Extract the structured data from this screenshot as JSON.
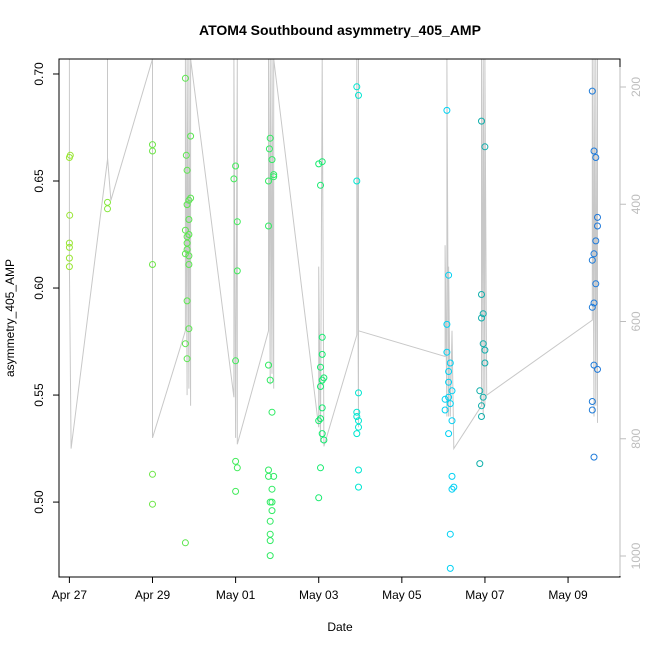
{
  "chart_data": {
    "type": "scatter",
    "title": "ATOM4 Southbound asymmetry_405_AMP",
    "xlabel": "Date",
    "ylabel": "asymmetry_405_AMP",
    "x_ticks": [
      {
        "date": "2018-04-27",
        "label": "Apr 27"
      },
      {
        "date": "2018-04-29",
        "label": "Apr 29"
      },
      {
        "date": "2018-05-01",
        "label": "May 01"
      },
      {
        "date": "2018-05-03",
        "label": "May 03"
      },
      {
        "date": "2018-05-05",
        "label": "May 05"
      },
      {
        "date": "2018-05-07",
        "label": "May 07"
      },
      {
        "date": "2018-05-09",
        "label": "May 09"
      }
    ],
    "xlim": [
      "2018-04-26T18:00",
      "2018-05-10T06:00"
    ],
    "ylim": [
      0.465,
      0.707
    ],
    "y_ticks": [
      0.5,
      0.55,
      0.6,
      0.65,
      0.7
    ],
    "y_tick_labels": [
      "0.50",
      "0.55",
      "0.60",
      "0.65",
      "0.70"
    ],
    "y2_ticks": [
      200,
      400,
      600,
      800,
      1000
    ],
    "y2_tick_labels": [
      "200",
      "400",
      "600",
      "800",
      "1000"
    ],
    "y2_axis": "secondary axis, values increase downward (grey)",
    "grid": false,
    "legend": "none",
    "point_color_scale": "green (earlier) to blue (later) by date",
    "point_color_start": "#99e633",
    "point_color_end": "#1e78dc",
    "line_color": "#c8c8c8",
    "points": [
      {
        "x": "2018-04-27T00:00",
        "y": 0.661
      },
      {
        "x": "2018-04-27T00:30",
        "y": 0.662
      },
      {
        "x": "2018-04-27T00:10",
        "y": 0.634
      },
      {
        "x": "2018-04-27T00:00",
        "y": 0.621
      },
      {
        "x": "2018-04-27T00:00",
        "y": 0.619
      },
      {
        "x": "2018-04-27T00:00",
        "y": 0.614
      },
      {
        "x": "2018-04-27T00:00",
        "y": 0.61
      },
      {
        "x": "2018-04-27T22:00",
        "y": 0.64
      },
      {
        "x": "2018-04-27T22:00",
        "y": 0.637
      },
      {
        "x": "2018-04-29T00:00",
        "y": 0.667
      },
      {
        "x": "2018-04-29T00:00",
        "y": 0.664
      },
      {
        "x": "2018-04-29T00:00",
        "y": 0.611
      },
      {
        "x": "2018-04-29T00:00",
        "y": 0.513
      },
      {
        "x": "2018-04-29T00:00",
        "y": 0.499
      },
      {
        "x": "2018-04-29T19:00",
        "y": 0.698
      },
      {
        "x": "2018-04-29T19:30",
        "y": 0.662
      },
      {
        "x": "2018-04-29T20:00",
        "y": 0.655
      },
      {
        "x": "2018-04-29T22:00",
        "y": 0.671
      },
      {
        "x": "2018-04-29T21:00",
        "y": 0.641
      },
      {
        "x": "2018-04-29T22:00",
        "y": 0.642
      },
      {
        "x": "2018-04-29T20:00",
        "y": 0.639
      },
      {
        "x": "2018-04-29T21:00",
        "y": 0.632
      },
      {
        "x": "2018-04-29T19:00",
        "y": 0.627
      },
      {
        "x": "2018-04-29T20:00",
        "y": 0.624
      },
      {
        "x": "2018-04-29T21:00",
        "y": 0.625
      },
      {
        "x": "2018-04-29T20:00",
        "y": 0.621
      },
      {
        "x": "2018-04-29T20:00",
        "y": 0.618
      },
      {
        "x": "2018-04-29T19:00",
        "y": 0.616
      },
      {
        "x": "2018-04-29T21:00",
        "y": 0.615
      },
      {
        "x": "2018-04-29T21:00",
        "y": 0.611
      },
      {
        "x": "2018-04-29T20:00",
        "y": 0.594
      },
      {
        "x": "2018-04-29T21:00",
        "y": 0.581
      },
      {
        "x": "2018-04-29T19:00",
        "y": 0.574
      },
      {
        "x": "2018-04-29T20:00",
        "y": 0.567
      },
      {
        "x": "2018-04-29T19:00",
        "y": 0.481
      },
      {
        "x": "2018-05-01T00:00",
        "y": 0.657
      },
      {
        "x": "2018-04-30T23:00",
        "y": 0.651
      },
      {
        "x": "2018-05-01T01:00",
        "y": 0.631
      },
      {
        "x": "2018-05-01T01:00",
        "y": 0.608
      },
      {
        "x": "2018-05-01T00:00",
        "y": 0.566
      },
      {
        "x": "2018-05-01T00:00",
        "y": 0.519
      },
      {
        "x": "2018-05-01T01:00",
        "y": 0.516
      },
      {
        "x": "2018-05-01T00:00",
        "y": 0.505
      },
      {
        "x": "2018-05-01T20:00",
        "y": 0.67
      },
      {
        "x": "2018-05-01T19:30",
        "y": 0.665
      },
      {
        "x": "2018-05-01T21:00",
        "y": 0.66
      },
      {
        "x": "2018-05-01T22:00",
        "y": 0.653
      },
      {
        "x": "2018-05-01T22:00",
        "y": 0.652
      },
      {
        "x": "2018-05-01T19:00",
        "y": 0.65
      },
      {
        "x": "2018-05-01T19:00",
        "y": 0.629
      },
      {
        "x": "2018-05-01T19:00",
        "y": 0.564
      },
      {
        "x": "2018-05-01T20:00",
        "y": 0.557
      },
      {
        "x": "2018-05-01T21:00",
        "y": 0.542
      },
      {
        "x": "2018-05-01T19:00",
        "y": 0.515
      },
      {
        "x": "2018-05-01T19:00",
        "y": 0.512
      },
      {
        "x": "2018-05-01T22:00",
        "y": 0.512
      },
      {
        "x": "2018-05-01T21:00",
        "y": 0.506
      },
      {
        "x": "2018-05-01T20:00",
        "y": 0.5
      },
      {
        "x": "2018-05-01T21:00",
        "y": 0.5
      },
      {
        "x": "2018-05-01T21:00",
        "y": 0.496
      },
      {
        "x": "2018-05-01T20:00",
        "y": 0.491
      },
      {
        "x": "2018-05-01T20:00",
        "y": 0.485
      },
      {
        "x": "2018-05-01T20:00",
        "y": 0.482
      },
      {
        "x": "2018-05-01T20:00",
        "y": 0.475
      },
      {
        "x": "2018-05-03T00:00",
        "y": 0.658
      },
      {
        "x": "2018-05-03T02:00",
        "y": 0.659
      },
      {
        "x": "2018-05-03T01:00",
        "y": 0.648
      },
      {
        "x": "2018-05-03T02:00",
        "y": 0.577
      },
      {
        "x": "2018-05-03T02:00",
        "y": 0.569
      },
      {
        "x": "2018-05-03T01:00",
        "y": 0.563
      },
      {
        "x": "2018-05-03T02:00",
        "y": 0.557
      },
      {
        "x": "2018-05-03T03:00",
        "y": 0.558
      },
      {
        "x": "2018-05-03T01:00",
        "y": 0.554
      },
      {
        "x": "2018-05-03T02:00",
        "y": 0.544
      },
      {
        "x": "2018-05-03T01:00",
        "y": 0.539
      },
      {
        "x": "2018-05-03T00:00",
        "y": 0.538
      },
      {
        "x": "2018-05-03T02:00",
        "y": 0.532
      },
      {
        "x": "2018-05-03T03:00",
        "y": 0.529
      },
      {
        "x": "2018-05-03T01:00",
        "y": 0.516
      },
      {
        "x": "2018-05-03T00:00",
        "y": 0.502
      },
      {
        "x": "2018-05-03T22:00",
        "y": 0.694
      },
      {
        "x": "2018-05-03T23:00",
        "y": 0.69
      },
      {
        "x": "2018-05-03T22:00",
        "y": 0.65
      },
      {
        "x": "2018-05-03T23:00",
        "y": 0.551
      },
      {
        "x": "2018-05-03T22:00",
        "y": 0.542
      },
      {
        "x": "2018-05-03T22:00",
        "y": 0.54
      },
      {
        "x": "2018-05-03T23:00",
        "y": 0.538
      },
      {
        "x": "2018-05-03T23:00",
        "y": 0.535
      },
      {
        "x": "2018-05-03T22:00",
        "y": 0.532
      },
      {
        "x": "2018-05-03T23:00",
        "y": 0.515
      },
      {
        "x": "2018-05-03T23:00",
        "y": 0.507
      },
      {
        "x": "2018-05-06T02:00",
        "y": 0.683
      },
      {
        "x": "2018-05-06T03:00",
        "y": 0.606
      },
      {
        "x": "2018-05-06T02:00",
        "y": 0.583
      },
      {
        "x": "2018-05-06T02:00",
        "y": 0.57
      },
      {
        "x": "2018-05-06T04:00",
        "y": 0.565
      },
      {
        "x": "2018-05-06T03:00",
        "y": 0.561
      },
      {
        "x": "2018-05-06T03:00",
        "y": 0.556
      },
      {
        "x": "2018-05-06T05:00",
        "y": 0.552
      },
      {
        "x": "2018-05-06T03:00",
        "y": 0.549
      },
      {
        "x": "2018-05-06T01:00",
        "y": 0.548
      },
      {
        "x": "2018-05-06T04:00",
        "y": 0.546
      },
      {
        "x": "2018-05-06T01:00",
        "y": 0.543
      },
      {
        "x": "2018-05-06T05:00",
        "y": 0.538
      },
      {
        "x": "2018-05-06T03:00",
        "y": 0.532
      },
      {
        "x": "2018-05-06T05:00",
        "y": 0.512
      },
      {
        "x": "2018-05-06T06:00",
        "y": 0.507
      },
      {
        "x": "2018-05-06T05:00",
        "y": 0.506
      },
      {
        "x": "2018-05-06T04:00",
        "y": 0.485
      },
      {
        "x": "2018-05-06T04:00",
        "y": 0.469
      },
      {
        "x": "2018-05-06T22:00",
        "y": 0.678
      },
      {
        "x": "2018-05-07T00:00",
        "y": 0.666
      },
      {
        "x": "2018-05-06T22:00",
        "y": 0.597
      },
      {
        "x": "2018-05-06T23:00",
        "y": 0.588
      },
      {
        "x": "2018-05-06T22:00",
        "y": 0.586
      },
      {
        "x": "2018-05-06T23:00",
        "y": 0.574
      },
      {
        "x": "2018-05-07T00:00",
        "y": 0.571
      },
      {
        "x": "2018-05-07T00:00",
        "y": 0.565
      },
      {
        "x": "2018-05-06T21:00",
        "y": 0.552
      },
      {
        "x": "2018-05-06T23:00",
        "y": 0.549
      },
      {
        "x": "2018-05-06T22:00",
        "y": 0.545
      },
      {
        "x": "2018-05-06T22:00",
        "y": 0.54
      },
      {
        "x": "2018-05-06T21:00",
        "y": 0.518
      },
      {
        "x": "2018-05-09T14:00",
        "y": 0.692
      },
      {
        "x": "2018-05-09T15:00",
        "y": 0.664
      },
      {
        "x": "2018-05-09T16:00",
        "y": 0.661
      },
      {
        "x": "2018-05-09T17:00",
        "y": 0.633
      },
      {
        "x": "2018-05-09T17:00",
        "y": 0.629
      },
      {
        "x": "2018-05-09T16:00",
        "y": 0.622
      },
      {
        "x": "2018-05-09T15:00",
        "y": 0.616
      },
      {
        "x": "2018-05-09T14:00",
        "y": 0.613
      },
      {
        "x": "2018-05-09T16:00",
        "y": 0.602
      },
      {
        "x": "2018-05-09T14:00",
        "y": 0.591
      },
      {
        "x": "2018-05-09T15:00",
        "y": 0.593
      },
      {
        "x": "2018-05-09T15:00",
        "y": 0.564
      },
      {
        "x": "2018-05-09T17:00",
        "y": 0.562
      },
      {
        "x": "2018-05-09T14:00",
        "y": 0.547
      },
      {
        "x": "2018-05-09T14:00",
        "y": 0.543
      },
      {
        "x": "2018-05-09T15:00",
        "y": 0.521
      }
    ],
    "line_path": [
      [
        "2018-04-27T00:00",
        0.707
      ],
      [
        "2018-04-27T00:00",
        0.61
      ],
      [
        "2018-04-27T01:00",
        0.525
      ],
      [
        "2018-04-27T22:00",
        0.66
      ],
      [
        "2018-04-27T22:00",
        0.707
      ],
      [
        "2018-04-27T22:00",
        0.661
      ],
      [
        "2018-04-28T00:00",
        0.641
      ],
      [
        "2018-04-29T00:00",
        0.707
      ],
      [
        "2018-04-29T00:00",
        0.53
      ],
      [
        "2018-04-29T19:00",
        0.58
      ],
      [
        "2018-04-29T19:00",
        0.707
      ],
      [
        "2018-04-29T20:00",
        0.55
      ],
      [
        "2018-04-29T20:00",
        0.707
      ],
      [
        "2018-04-29T21:00",
        0.553
      ],
      [
        "2018-04-29T21:00",
        0.707
      ],
      [
        "2018-04-29T22:00",
        0.545
      ],
      [
        "2018-04-29T22:00",
        0.707
      ],
      [
        "2018-04-30T23:00",
        0.549
      ],
      [
        "2018-04-30T23:00",
        0.707
      ],
      [
        "2018-05-01T00:00",
        0.53
      ],
      [
        "2018-05-01T01:00",
        0.707
      ],
      [
        "2018-05-01T01:00",
        0.527
      ],
      [
        "2018-05-01T19:00",
        0.58
      ],
      [
        "2018-05-01T19:00",
        0.707
      ],
      [
        "2018-05-01T20:00",
        0.555
      ],
      [
        "2018-05-01T20:00",
        0.707
      ],
      [
        "2018-05-01T21:00",
        0.56
      ],
      [
        "2018-05-01T21:00",
        0.707
      ],
      [
        "2018-05-01T22:00",
        0.553
      ],
      [
        "2018-05-01T22:00",
        0.707
      ],
      [
        "2018-05-03T00:00",
        0.535
      ],
      [
        "2018-05-03T00:00",
        0.61
      ],
      [
        "2018-05-03T01:00",
        0.528
      ],
      [
        "2018-05-03T02:00",
        0.707
      ],
      [
        "2018-05-03T03:00",
        0.526
      ],
      [
        "2018-05-03T22:00",
        0.578
      ],
      [
        "2018-05-03T22:00",
        0.707
      ],
      [
        "2018-05-03T23:00",
        0.535
      ],
      [
        "2018-05-03T23:00",
        0.707
      ],
      [
        "2018-05-03T23:00",
        0.58
      ],
      [
        "2018-05-06T01:00",
        0.568
      ],
      [
        "2018-05-06T01:00",
        0.62
      ],
      [
        "2018-05-06T02:00",
        0.54
      ],
      [
        "2018-05-06T02:00",
        0.707
      ],
      [
        "2018-05-06T03:00",
        0.54
      ],
      [
        "2018-05-06T03:00",
        0.61
      ],
      [
        "2018-05-06T04:00",
        0.54
      ],
      [
        "2018-05-06T05:00",
        0.58
      ],
      [
        "2018-05-06T06:00",
        0.525
      ],
      [
        "2018-05-06T22:00",
        0.545
      ],
      [
        "2018-05-06T22:00",
        0.707
      ],
      [
        "2018-05-06T23:00",
        0.54
      ],
      [
        "2018-05-06T23:00",
        0.707
      ],
      [
        "2018-05-07T00:00",
        0.545
      ],
      [
        "2018-05-07T00:00",
        0.707
      ],
      [
        "2018-05-07T01:00",
        0.55
      ],
      [
        "2018-05-09T14:00",
        0.585
      ],
      [
        "2018-05-09T14:00",
        0.707
      ],
      [
        "2018-05-09T15:00",
        0.54
      ],
      [
        "2018-05-09T15:00",
        0.707
      ],
      [
        "2018-05-09T16:00",
        0.545
      ],
      [
        "2018-05-09T16:00",
        0.707
      ],
      [
        "2018-05-09T17:00",
        0.537
      ],
      [
        "2018-05-09T17:00",
        0.707
      ]
    ]
  }
}
